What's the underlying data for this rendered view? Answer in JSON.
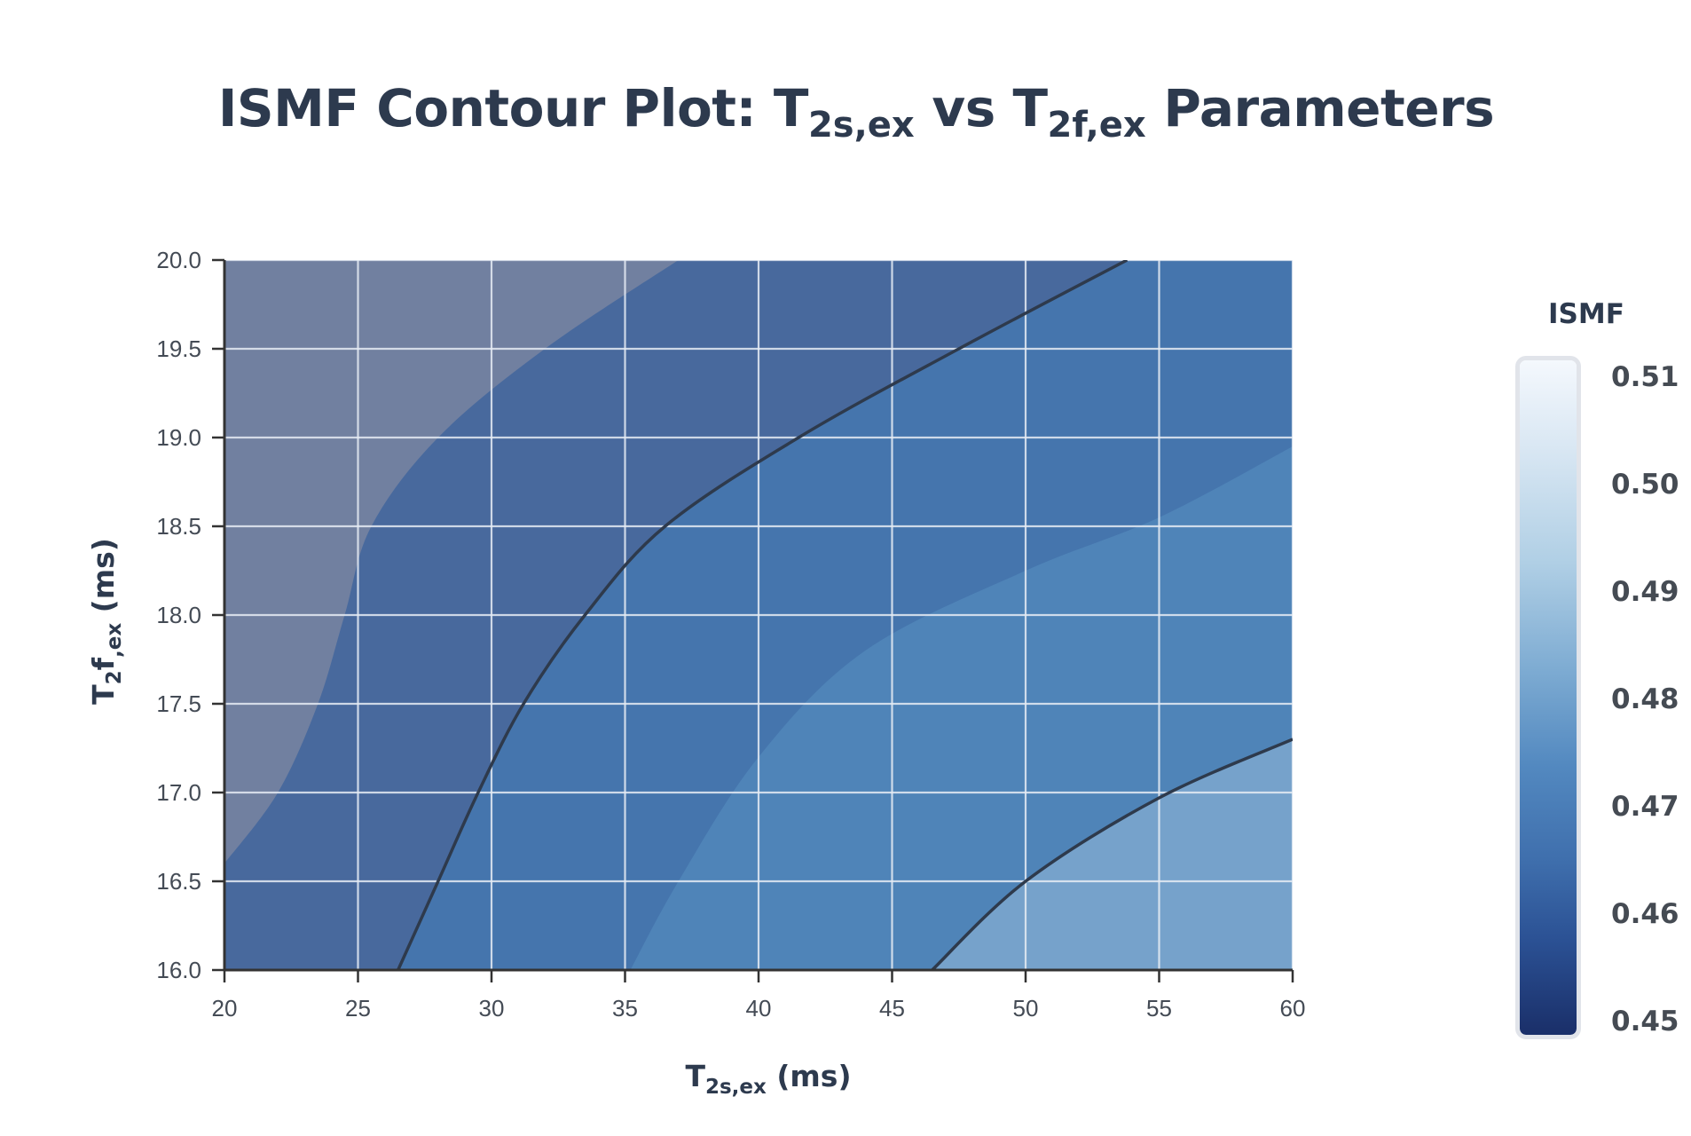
{
  "title": {
    "prefix": "ISMF Contour Plot: T",
    "sub1": "2s,ex",
    "mid": " vs T",
    "sub2": "2f,ex",
    "suffix": " Parameters"
  },
  "axes": {
    "x_title_main": "T",
    "x_title_sub": "2s,ex",
    "x_title_unit": " (ms)",
    "y_title_main": "T",
    "y_title_sub2": "2",
    "y_title_f": "f",
    "y_title_sub": ",ex",
    "y_title_unit": " (ms)",
    "x_ticks": [
      "20",
      "25",
      "30",
      "35",
      "40",
      "45",
      "50",
      "55",
      "60"
    ],
    "y_ticks": [
      "16.0",
      "16.5",
      "17.0",
      "17.5",
      "18.0",
      "18.5",
      "19.0",
      "19.5",
      "20.0"
    ]
  },
  "colorbar": {
    "title": "ISMF",
    "ticks": [
      "0.51",
      "0.50",
      "0.49",
      "0.48",
      "0.47",
      "0.46",
      "0.45"
    ]
  },
  "colors": {
    "region_1": "#7180a0",
    "region_2": "#48699d",
    "region_3": "#4575ad",
    "region_4": "#4f84b8",
    "region_5": "#76a2cb",
    "contour_line": "#2e3a4c",
    "grid": "#e6ecf4",
    "axis": "#333333"
  },
  "chart_data": {
    "type": "heatmap",
    "subtype": "filled contour",
    "title": "ISMF Contour Plot: T2s,ex vs T2f,ex Parameters",
    "xlabel": "T2s,ex (ms)",
    "ylabel": "T2f,ex (ms)",
    "xlim": [
      20,
      60
    ],
    "ylim": [
      16.0,
      20.0
    ],
    "x_ticks": [
      20,
      25,
      30,
      35,
      40,
      45,
      50,
      55,
      60
    ],
    "y_ticks": [
      16.0,
      16.5,
      17.0,
      17.5,
      18.0,
      18.5,
      19.0,
      19.5,
      20.0
    ],
    "grid": true,
    "colorbar": {
      "title": "ISMF",
      "range": [
        0.45,
        0.51
      ],
      "ticks": [
        0.45,
        0.46,
        0.47,
        0.48,
        0.49,
        0.5,
        0.51
      ],
      "colorscale": "Blues (reversed: dark navy = low, white = high)",
      "position": "right"
    },
    "trend": "ISMF increases with T2s,ex and decreases with T2f,ex; lowest at top-left, highest at bottom-right",
    "region_boundaries": [
      {
        "name": "boundary_1_fill",
        "points": [
          [
            20,
            16.6
          ],
          [
            22,
            17.0
          ],
          [
            23.5,
            17.5
          ],
          [
            24.5,
            18.0
          ],
          [
            25.5,
            18.5
          ],
          [
            28,
            19.0
          ],
          [
            32,
            19.5
          ],
          [
            37,
            20.0
          ]
        ]
      },
      {
        "name": "contour_line_1",
        "points": [
          [
            26.5,
            16.0
          ],
          [
            28,
            16.5
          ],
          [
            29.5,
            17.0
          ],
          [
            31.2,
            17.5
          ],
          [
            33.5,
            18.0
          ],
          [
            36.5,
            18.5
          ],
          [
            41.5,
            19.0
          ],
          [
            47.5,
            19.5
          ],
          [
            53.8,
            20.0
          ]
        ]
      },
      {
        "name": "boundary_2_fill",
        "points": [
          [
            35.2,
            16.0
          ],
          [
            37,
            16.5
          ],
          [
            40,
            17.2
          ],
          [
            44,
            17.8
          ],
          [
            50,
            18.25
          ],
          [
            55,
            18.55
          ],
          [
            60,
            18.95
          ]
        ]
      },
      {
        "name": "contour_line_2",
        "points": [
          [
            46.5,
            16.0
          ],
          [
            50,
            16.5
          ],
          [
            55,
            16.97
          ],
          [
            60,
            17.3
          ]
        ]
      }
    ]
  }
}
